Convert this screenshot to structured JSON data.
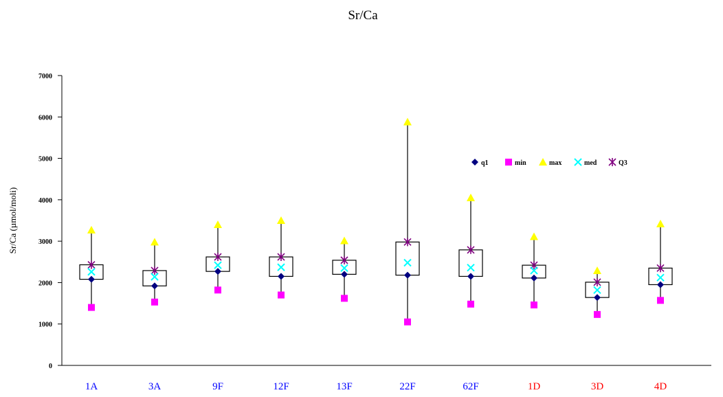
{
  "chart_data": {
    "type": "box",
    "title": "Sr/Ca",
    "ylabel": "Sr/Ca (µmol/moli)",
    "xlabel": "",
    "ylim": [
      0,
      7000
    ],
    "yticks": [
      0,
      1000,
      2000,
      3000,
      4000,
      5000,
      6000,
      7000
    ],
    "grid": false,
    "legend_position": "right",
    "categories": [
      "1A",
      "3A",
      "9F",
      "12F",
      "13F",
      "22F",
      "62F",
      "1D",
      "3D",
      "4D"
    ],
    "category_colors": [
      "#0000ff",
      "#0000ff",
      "#0000ff",
      "#0000ff",
      "#0000ff",
      "#0000ff",
      "#0000ff",
      "#ff0000",
      "#ff0000",
      "#ff0000"
    ],
    "series": [
      {
        "name": "q1",
        "marker": "diamond",
        "color": "#000080",
        "values": [
          2080,
          1920,
          2270,
          2150,
          2200,
          2180,
          2150,
          2110,
          1640,
          1950
        ]
      },
      {
        "name": "min",
        "marker": "square",
        "color": "#ff00ff",
        "values": [
          1400,
          1530,
          1820,
          1700,
          1620,
          1050,
          1480,
          1460,
          1230,
          1570
        ]
      },
      {
        "name": "max",
        "marker": "triangle",
        "color": "#ffff00",
        "values": [
          3270,
          2980,
          3400,
          3500,
          3010,
          5880,
          4050,
          3110,
          2290,
          3420
        ]
      },
      {
        "name": "med",
        "marker": "x",
        "color": "#00ffff",
        "values": [
          2260,
          2140,
          2420,
          2370,
          2350,
          2480,
          2360,
          2290,
          1820,
          2120
        ]
      },
      {
        "name": "Q3",
        "marker": "star",
        "color": "#800080",
        "values": [
          2430,
          2290,
          2620,
          2620,
          2540,
          2980,
          2790,
          2420,
          2010,
          2350
        ]
      }
    ]
  }
}
